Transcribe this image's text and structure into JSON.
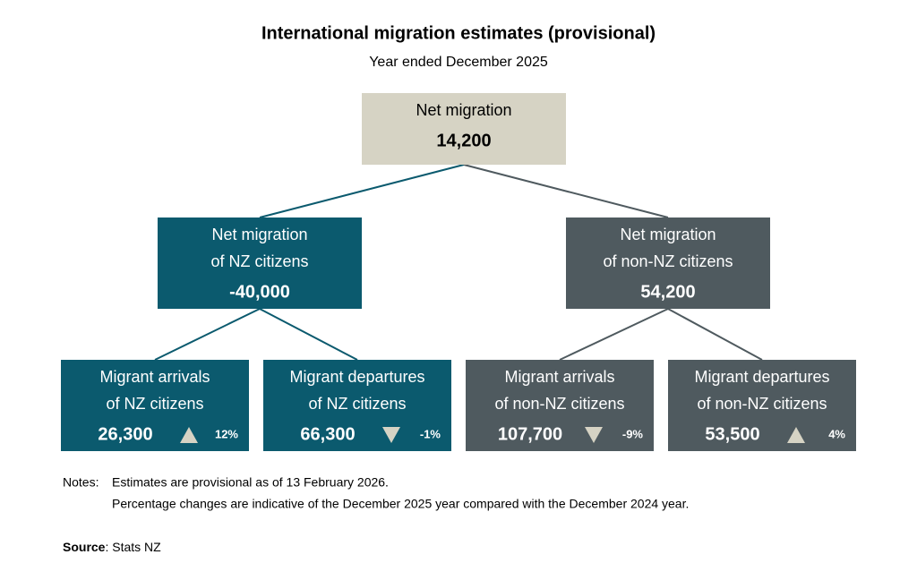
{
  "title": "International migration estimates (provisional)",
  "subtitle": "Year ended December 2025",
  "nodes": [
    {
      "lines": [
        "Net migration"
      ],
      "value": "14,200"
    },
    {
      "lines": [
        "Net migration",
        "of NZ citizens"
      ],
      "value": "-40,000"
    },
    {
      "lines": [
        "Net migration",
        "of non-NZ citizens"
      ],
      "value": "54,200"
    },
    {
      "lines": [
        "Migrant arrivals",
        "of NZ citizens"
      ],
      "value": "26,300",
      "change": "12%"
    },
    {
      "lines": [
        "Migrant departures",
        "of NZ citizens"
      ],
      "value": "66,300",
      "change": "-1%"
    },
    {
      "lines": [
        "Migrant arrivals",
        "of non-NZ citizens"
      ],
      "value": "107,700",
      "change": "-9%"
    },
    {
      "lines": [
        "Migrant departures",
        "of non-NZ citizens"
      ],
      "value": "53,500",
      "change": "4%"
    }
  ],
  "notes": {
    "label": "Notes:",
    "lines": [
      "Estimates are provisional as of 13 February 2026.",
      "Percentage changes are indicative of the December 2025 year compared with the December 2024 year."
    ]
  },
  "source": {
    "label": "Source",
    "text": ": Stats NZ"
  }
}
